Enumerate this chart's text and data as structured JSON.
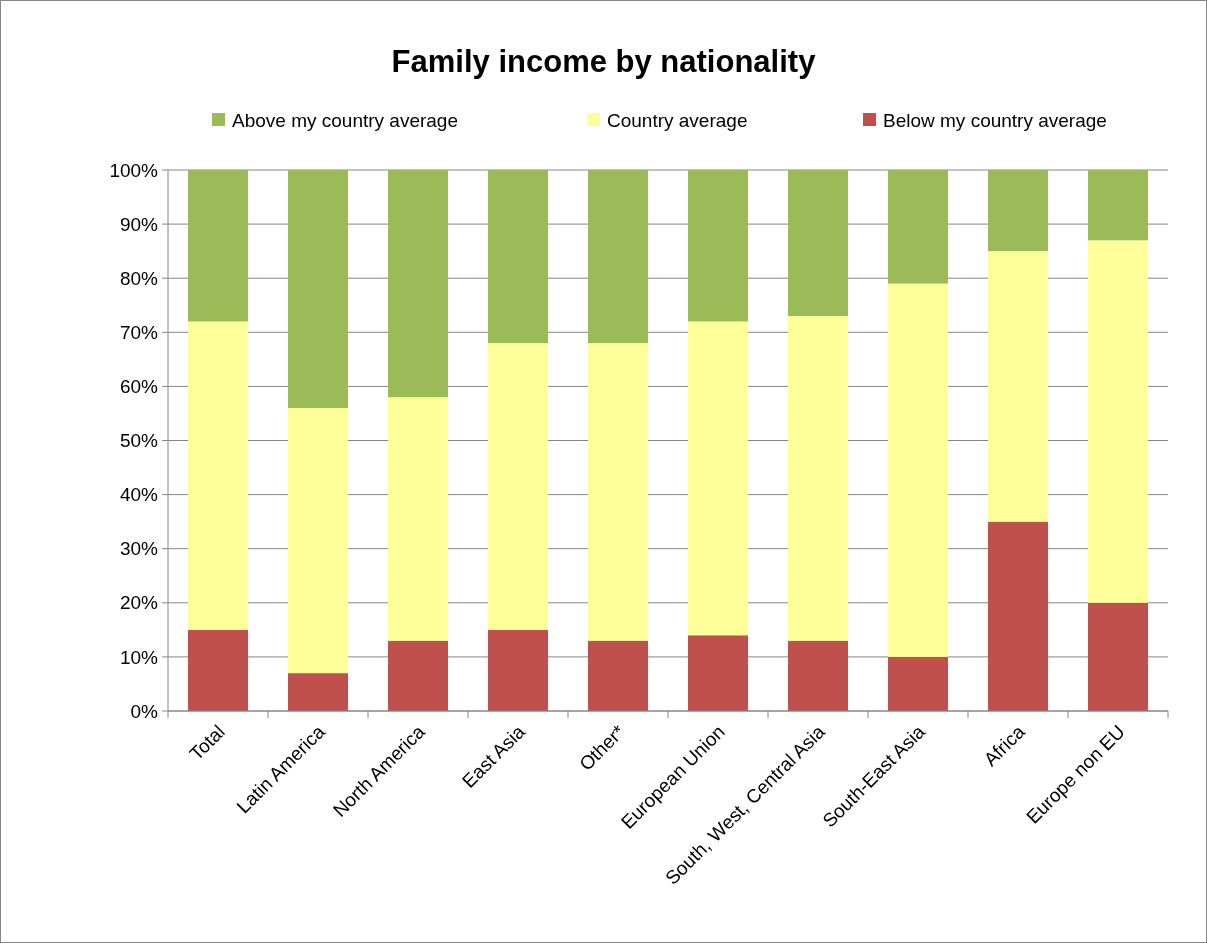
{
  "chart_data": {
    "type": "bar",
    "title": "Family income by nationality",
    "stacked": true,
    "legend": "top",
    "grid": "y",
    "categories": [
      "Total",
      "Latin America",
      "North America",
      "East Asia",
      "Other*",
      "European Union",
      "South, West, Central Asia",
      "South-East Asia",
      "Africa",
      "Europe non EU"
    ],
    "series": [
      {
        "name": "Below my country average",
        "color": "#c0504d",
        "values": [
          15,
          7,
          13,
          15,
          13,
          14,
          13,
          10,
          35,
          20
        ]
      },
      {
        "name": "Country average",
        "color": "#ffff99",
        "values": [
          57,
          49,
          45,
          53,
          55,
          58,
          60,
          69,
          50,
          67
        ]
      },
      {
        "name": "Above my country average",
        "color": "#9bbb59",
        "values": [
          28,
          44,
          42,
          32,
          32,
          28,
          27,
          21,
          15,
          13
        ]
      }
    ],
    "ylim": [
      0,
      100
    ],
    "yticks": [
      {
        "value": 0,
        "label": "0%"
      },
      {
        "value": 10,
        "label": "10%"
      },
      {
        "value": 20,
        "label": "20%"
      },
      {
        "value": 30,
        "label": "30%"
      },
      {
        "value": 40,
        "label": "40%"
      },
      {
        "value": 50,
        "label": "50%"
      },
      {
        "value": 60,
        "label": "60%"
      },
      {
        "value": 70,
        "label": "70%"
      },
      {
        "value": 80,
        "label": "80%"
      },
      {
        "value": 90,
        "label": "90%"
      },
      {
        "value": 100,
        "label": "100%"
      }
    ]
  }
}
